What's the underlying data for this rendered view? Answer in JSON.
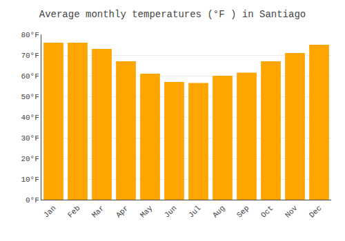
{
  "chart_data": {
    "type": "bar",
    "title": "Average monthly temperatures (°F ) in Santiago",
    "categories": [
      "Jan",
      "Feb",
      "Mar",
      "Apr",
      "May",
      "Jun",
      "Jul",
      "Aug",
      "Sep",
      "Oct",
      "Nov",
      "Dec"
    ],
    "values": [
      76,
      76,
      73,
      67,
      61,
      57,
      56.5,
      60,
      61.5,
      67,
      71,
      75
    ],
    "color": "#FFA500",
    "ylim": [
      0,
      80
    ],
    "yticks": [
      {
        "value": 0,
        "label": "0°F"
      },
      {
        "value": 10,
        "label": "10°F"
      },
      {
        "value": 20,
        "label": "20°F"
      },
      {
        "value": 30,
        "label": "30°F"
      },
      {
        "value": 40,
        "label": "40°F"
      },
      {
        "value": 50,
        "label": "50°F"
      },
      {
        "value": 60,
        "label": "60°F"
      },
      {
        "value": 70,
        "label": "70°F"
      },
      {
        "value": 80,
        "label": "80°F"
      }
    ],
    "grid": true
  }
}
